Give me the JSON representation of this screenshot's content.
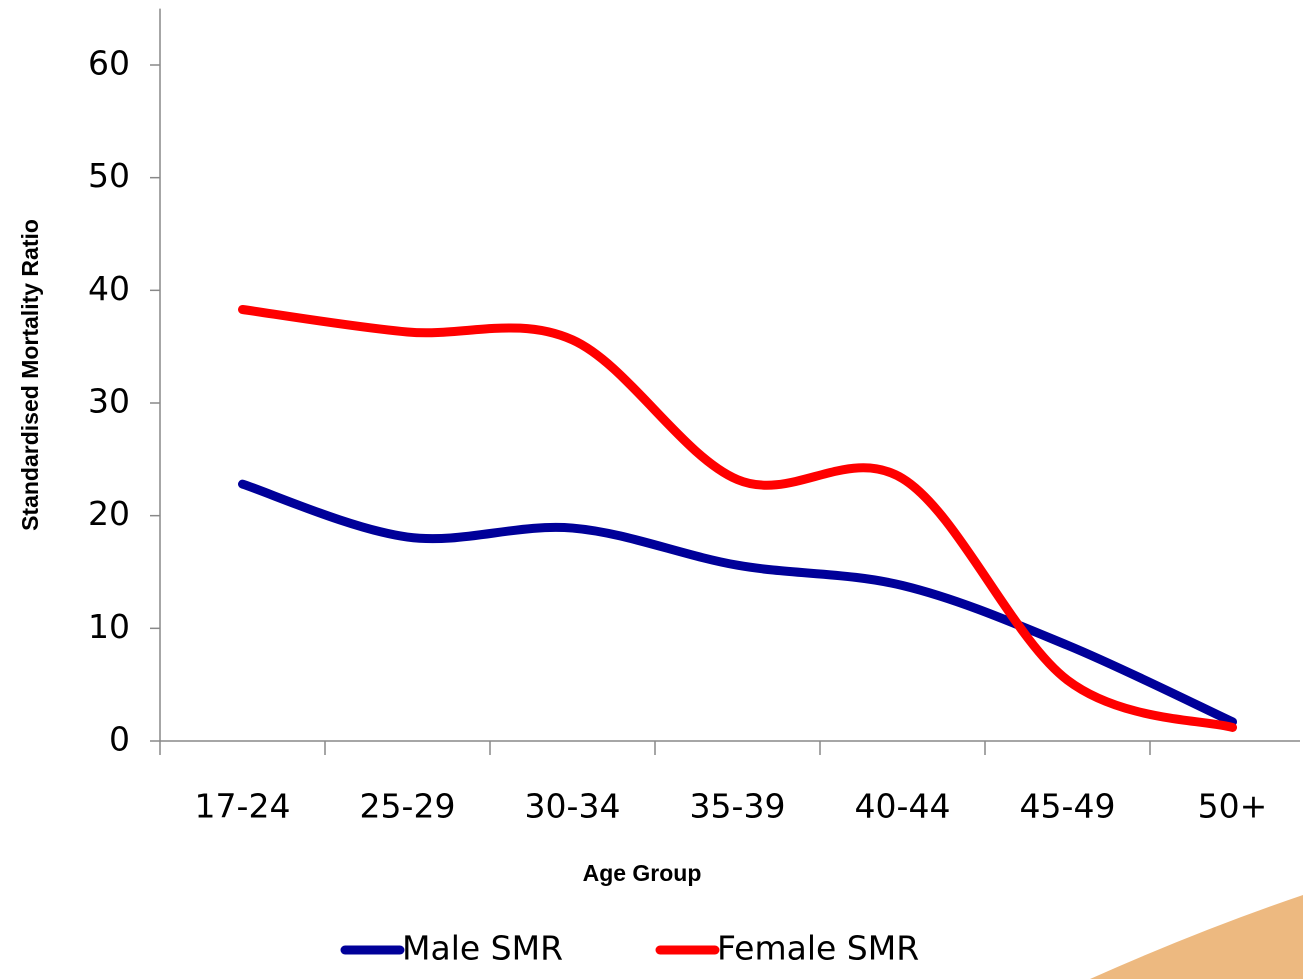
{
  "chart_data": {
    "type": "line",
    "smooth": true,
    "x_label": "Age Group",
    "y_label": "Standardised Mortality Ratio",
    "categories": [
      "17-24",
      "25-29",
      "30-34",
      "35-39",
      "40-44",
      "45-49",
      "50+"
    ],
    "series": [
      {
        "name": "Male SMR",
        "color": "#000099",
        "values": [
          22.8,
          18.1,
          18.9,
          15.6,
          13.8,
          8.5,
          1.7
        ]
      },
      {
        "name": "Female SMR",
        "color": "#ff0000",
        "values": [
          38.3,
          36.3,
          35.6,
          23.2,
          23.3,
          5.4,
          1.2
        ]
      }
    ],
    "ylim": [
      0,
      65
    ],
    "yticks": [
      0,
      10,
      20,
      30,
      40,
      50,
      60
    ],
    "grid": false,
    "legend": "bottom"
  }
}
